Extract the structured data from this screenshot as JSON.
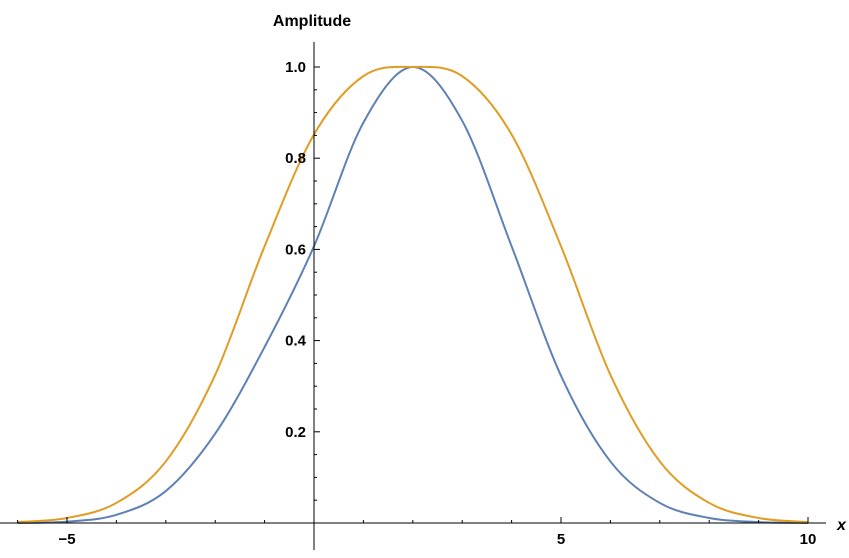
{
  "chart_data": {
    "type": "line",
    "title": "",
    "xlabel": "x",
    "ylabel": "Amplitude",
    "xlim": [
      -6,
      10
    ],
    "ylim": [
      0,
      1.05
    ],
    "x_ticks": [
      -5,
      5,
      10
    ],
    "x_tick_labels": [
      "−5",
      "5",
      "10"
    ],
    "y_ticks": [
      0.2,
      0.4,
      0.6,
      0.8,
      1.0
    ],
    "y_tick_labels": [
      "0.2",
      "0.4",
      "0.6",
      "0.8",
      "1.0"
    ],
    "grid": false,
    "x": [
      -6,
      -5,
      -4,
      -3,
      -2,
      -1,
      0,
      1,
      2,
      3,
      4,
      5,
      6,
      7,
      8,
      9,
      10
    ],
    "series": [
      {
        "color": "#5e81b5",
        "values": [
          0.0,
          0.003,
          0.018,
          0.07,
          0.196,
          0.386,
          0.607,
          0.878,
          1.0,
          0.882,
          0.607,
          0.323,
          0.135,
          0.044,
          0.011,
          0.002,
          0.0
        ]
      },
      {
        "color": "#e19c24",
        "values": [
          0.002,
          0.011,
          0.044,
          0.135,
          0.325,
          0.607,
          0.852,
          0.98,
          1.0,
          0.98,
          0.852,
          0.607,
          0.325,
          0.135,
          0.044,
          0.011,
          0.002
        ]
      }
    ]
  }
}
